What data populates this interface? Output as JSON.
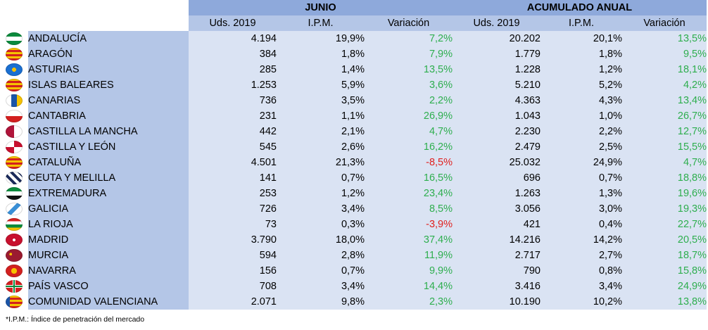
{
  "headers": {
    "group1": "JUNIO",
    "group2": "ACUMULADO ANUAL",
    "cols": [
      "Uds. 2019",
      "I.P.M.",
      "Variación",
      "Uds. 2019",
      "I.P.M.",
      "Variación"
    ]
  },
  "rows": [
    {
      "region": "ANDALUCÍA",
      "flag": "andalucia-flag-icon",
      "j_uds": "4.194",
      "j_ipm": "19,9%",
      "j_var": "7,2%",
      "a_uds": "20.202",
      "a_ipm": "20,1%",
      "a_var": "13,5%"
    },
    {
      "region": "ARAGÓN",
      "flag": "aragon-flag-icon",
      "j_uds": "384",
      "j_ipm": "1,8%",
      "j_var": "7,9%",
      "a_uds": "1.779",
      "a_ipm": "1,8%",
      "a_var": "9,5%"
    },
    {
      "region": "ASTURIAS",
      "flag": "asturias-flag-icon",
      "j_uds": "285",
      "j_ipm": "1,4%",
      "j_var": "13,5%",
      "a_uds": "1.228",
      "a_ipm": "1,2%",
      "a_var": "18,1%"
    },
    {
      "region": "ISLAS BALEARES",
      "flag": "baleares-flag-icon",
      "j_uds": "1.253",
      "j_ipm": "5,9%",
      "j_var": "3,6%",
      "a_uds": "5.210",
      "a_ipm": "5,2%",
      "a_var": "4,2%"
    },
    {
      "region": "CANARIAS",
      "flag": "canarias-flag-icon",
      "j_uds": "736",
      "j_ipm": "3,5%",
      "j_var": "2,2%",
      "a_uds": "4.363",
      "a_ipm": "4,3%",
      "a_var": "13,4%"
    },
    {
      "region": "CANTABRIA",
      "flag": "cantabria-flag-icon",
      "j_uds": "231",
      "j_ipm": "1,1%",
      "j_var": "26,9%",
      "a_uds": "1.043",
      "a_ipm": "1,0%",
      "a_var": "26,7%"
    },
    {
      "region": "CASTILLA LA MANCHA",
      "flag": "castilla-la-mancha-flag-icon",
      "j_uds": "442",
      "j_ipm": "2,1%",
      "j_var": "4,7%",
      "a_uds": "2.230",
      "a_ipm": "2,2%",
      "a_var": "12,7%"
    },
    {
      "region": "CASTILLA Y LEÓN",
      "flag": "castilla-y-leon-flag-icon",
      "j_uds": "545",
      "j_ipm": "2,6%",
      "j_var": "16,2%",
      "a_uds": "2.479",
      "a_ipm": "2,5%",
      "a_var": "15,5%"
    },
    {
      "region": "CATALUÑA",
      "flag": "cataluna-flag-icon",
      "j_uds": "4.501",
      "j_ipm": "21,3%",
      "j_var": "-8,5%",
      "a_uds": "25.032",
      "a_ipm": "24,9%",
      "a_var": "4,7%"
    },
    {
      "region": "CEUTA Y MELILLA",
      "flag": "ceuta-melilla-flag-icon",
      "j_uds": "141",
      "j_ipm": "0,7%",
      "j_var": "16,5%",
      "a_uds": "696",
      "a_ipm": "0,7%",
      "a_var": "18,8%"
    },
    {
      "region": "EXTREMADURA",
      "flag": "extremadura-flag-icon",
      "j_uds": "253",
      "j_ipm": "1,2%",
      "j_var": "23,4%",
      "a_uds": "1.263",
      "a_ipm": "1,3%",
      "a_var": "19,6%"
    },
    {
      "region": "GALICIA",
      "flag": "galicia-flag-icon",
      "j_uds": "726",
      "j_ipm": "3,4%",
      "j_var": "8,5%",
      "a_uds": "3.056",
      "a_ipm": "3,0%",
      "a_var": "19,3%"
    },
    {
      "region": "LA RIOJA",
      "flag": "la-rioja-flag-icon",
      "j_uds": "73",
      "j_ipm": "0,3%",
      "j_var": "-3,9%",
      "a_uds": "421",
      "a_ipm": "0,4%",
      "a_var": "22,7%"
    },
    {
      "region": "MADRID",
      "flag": "madrid-flag-icon",
      "j_uds": "3.790",
      "j_ipm": "18,0%",
      "j_var": "37,4%",
      "a_uds": "14.216",
      "a_ipm": "14,2%",
      "a_var": "20,5%"
    },
    {
      "region": "MURCIA",
      "flag": "murcia-flag-icon",
      "j_uds": "594",
      "j_ipm": "2,8%",
      "j_var": "11,9%",
      "a_uds": "2.717",
      "a_ipm": "2,7%",
      "a_var": "18,7%"
    },
    {
      "region": "NAVARRA",
      "flag": "navarra-flag-icon",
      "j_uds": "156",
      "j_ipm": "0,7%",
      "j_var": "9,9%",
      "a_uds": "790",
      "a_ipm": "0,8%",
      "a_var": "15,8%"
    },
    {
      "region": "PAÍS VASCO",
      "flag": "pais-vasco-flag-icon",
      "j_uds": "708",
      "j_ipm": "3,4%",
      "j_var": "14,4%",
      "a_uds": "3.416",
      "a_ipm": "3,4%",
      "a_var": "24,9%"
    },
    {
      "region": "COMUNIDAD VALENCIANA",
      "flag": "valenciana-flag-icon",
      "j_uds": "2.071",
      "j_ipm": "9,8%",
      "j_var": "2,3%",
      "a_uds": "10.190",
      "a_ipm": "10,2%",
      "a_var": "13,8%"
    }
  ],
  "footnote": "*I.P.M.: Índice de penetración del mercado",
  "colors": {
    "header_dark": "#8ea9db",
    "header_light": "#b4c6e7",
    "cell": "#dae3f3",
    "positive": "#2eae4e",
    "negative": "#e0211f"
  }
}
